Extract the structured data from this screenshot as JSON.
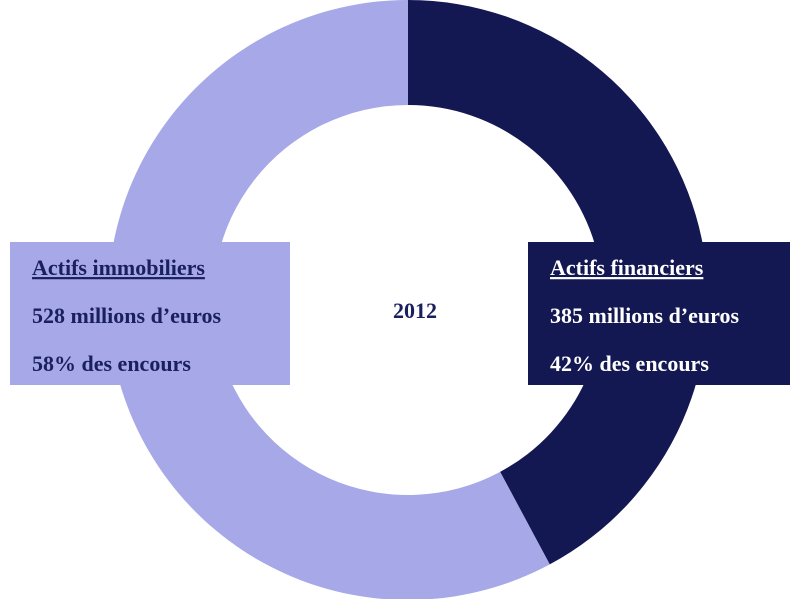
{
  "chart_data": {
    "type": "donut",
    "center_label": "2012",
    "categories": [
      "Actifs financiers",
      "Actifs immobiliers"
    ],
    "values": [
      385,
      528
    ],
    "value_labels": [
      "385 millions d’euros",
      "528 millions d’euros"
    ],
    "shares": [
      42,
      58
    ],
    "share_labels": [
      "42% des encours",
      "58% des encours"
    ],
    "colors": [
      "#141852",
      "#a6a8e8"
    ]
  }
}
